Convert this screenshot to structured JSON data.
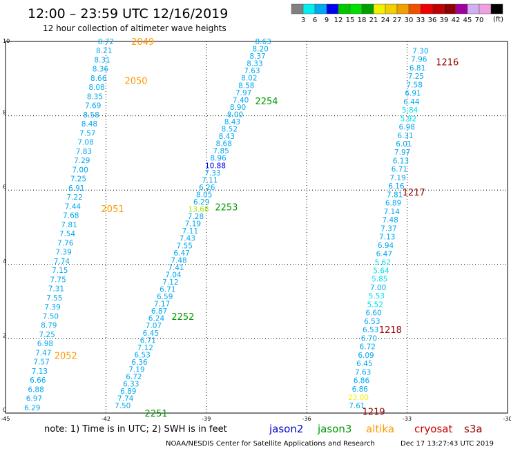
{
  "header": {
    "title": "12:00 – 23:59 UTC 12/16/2019",
    "subtitle": "12 hour collection of altimeter wave heights"
  },
  "legend": {
    "unit": "(ft)",
    "colors": [
      "#808080",
      "#00f0f0",
      "#00a8f0",
      "#0000f0",
      "#00c800",
      "#00e000",
      "#00a000",
      "#f0f000",
      "#f0d000",
      "#f0a000",
      "#f05000",
      "#f00000",
      "#c00000",
      "#900000",
      "#a000a0",
      "#d0b0f0",
      "#f0a0e0",
      "#000000"
    ],
    "labels": [
      "3",
      "6",
      "9",
      "12",
      "15",
      "18",
      "21",
      "24",
      "27",
      "30",
      "33",
      "36",
      "39",
      "42",
      "45",
      "70"
    ]
  },
  "footer": {
    "note": "note:  1) Time is in UTC;  2) SWH is in feet",
    "credit": "NOAA/NESDIS Center for Satellite Applications and Research",
    "timestamp": "Dec 17 13:27:43 UTC 2019",
    "satellites": [
      {
        "name": "jason2",
        "color": "#0000cc"
      },
      {
        "name": "jason3",
        "color": "#009900"
      },
      {
        "name": "altika",
        "color": "#ff9900"
      },
      {
        "name": "cryosat",
        "color": "#cc0000"
      },
      {
        "name": "s3a",
        "color": "#990000"
      }
    ]
  },
  "chart_data": {
    "type": "scatter",
    "title": "12:00 – 23:59 UTC 12/16/2019",
    "xlim": [
      -45,
      -30
    ],
    "ylim": [
      0,
      10
    ],
    "x_ticks": [
      -45,
      -42,
      -39,
      -36,
      -33,
      -30
    ],
    "y_ticks": [
      0,
      2,
      4,
      6,
      8,
      10
    ],
    "grid": true,
    "default_color": "#00a8f0",
    "tracks": [
      {
        "satellite": "altika",
        "color": "#ff9900",
        "x_start": -44.2,
        "y_start": 0.15,
        "x_end": -42.0,
        "y_end": 10.0,
        "points": [
          {
            "v": "6.29"
          },
          {
            "v": "6.97"
          },
          {
            "v": "6.88"
          },
          {
            "v": "6.66"
          },
          {
            "v": "7.13"
          },
          {
            "v": "7.57"
          },
          {
            "v": "7.47"
          },
          {
            "v": "6.98"
          },
          {
            "v": "7.25"
          },
          {
            "v": "8.79"
          },
          {
            "v": "7.50"
          },
          {
            "v": "7.39"
          },
          {
            "v": "7.55"
          },
          {
            "v": "7.31"
          },
          {
            "v": "7.75"
          },
          {
            "v": "7.15"
          },
          {
            "v": "7.74"
          },
          {
            "v": "7.39"
          },
          {
            "v": "7.76"
          },
          {
            "v": "7.54"
          },
          {
            "v": "7.81"
          },
          {
            "v": "7.68"
          },
          {
            "v": "7.44"
          },
          {
            "v": "7.22"
          },
          {
            "v": "6.91"
          },
          {
            "v": "7.25"
          },
          {
            "v": "7.00"
          },
          {
            "v": "7.29"
          },
          {
            "v": "7.83"
          },
          {
            "v": "7.08"
          },
          {
            "v": "7.57"
          },
          {
            "v": "8.48"
          },
          {
            "v": "8.58"
          },
          {
            "v": "7.69"
          },
          {
            "v": "8.35"
          },
          {
            "v": "8.08"
          },
          {
            "v": "8.66"
          },
          {
            "v": "8.36"
          },
          {
            "v": "8.31"
          },
          {
            "v": "8.21"
          },
          {
            "v": "8.72"
          }
        ],
        "labels": [
          {
            "text": "2052",
            "x": -43.2,
            "y": 1.55
          },
          {
            "text": "2051",
            "x": -41.8,
            "y": 5.5
          },
          {
            "text": "2050",
            "x": -41.1,
            "y": 8.95
          },
          {
            "text": "2049",
            "x": -40.9,
            "y": 10.0
          }
        ]
      },
      {
        "satellite": "jason3",
        "color": "#009900",
        "x_start": -41.5,
        "y_start": 0.2,
        "x_end": -37.3,
        "y_end": 10.0,
        "points": [
          {
            "v": "7.50"
          },
          {
            "v": "7.74"
          },
          {
            "v": "6.89"
          },
          {
            "v": "6.33"
          },
          {
            "v": "6.72"
          },
          {
            "v": "7.19"
          },
          {
            "v": "6.36"
          },
          {
            "v": "6.53"
          },
          {
            "v": "7.12"
          },
          {
            "v": "6.71"
          },
          {
            "v": "6.45"
          },
          {
            "v": "7.07"
          },
          {
            "v": "6.24"
          },
          {
            "v": "6.87"
          },
          {
            "v": "7.17"
          },
          {
            "v": "6.59"
          },
          {
            "v": "6.71"
          },
          {
            "v": "7.12"
          },
          {
            "v": "7.04"
          },
          {
            "v": "7.41"
          },
          {
            "v": "7.48"
          },
          {
            "v": "6.47"
          },
          {
            "v": "7.55"
          },
          {
            "v": "7.43"
          },
          {
            "v": "7.11"
          },
          {
            "v": "7.19"
          },
          {
            "v": "7.28"
          },
          {
            "v": "13.68",
            "c": "#a0e000"
          },
          {
            "v": "6.29"
          },
          {
            "v": "8.05"
          },
          {
            "v": "6.26"
          },
          {
            "v": "7.11"
          },
          {
            "v": "7.33"
          },
          {
            "v": "10.88",
            "c": "#0000f0"
          },
          {
            "v": "8.96"
          },
          {
            "v": "7.85"
          },
          {
            "v": "8.68"
          },
          {
            "v": "8.43"
          },
          {
            "v": "8.52"
          },
          {
            "v": "8.43"
          },
          {
            "v": "8.00"
          },
          {
            "v": "8.90"
          },
          {
            "v": "7.40"
          },
          {
            "v": "7.97"
          },
          {
            "v": "8.58"
          },
          {
            "v": "8.02"
          },
          {
            "v": "7.63"
          },
          {
            "v": "8.33"
          },
          {
            "v": "8.37"
          },
          {
            "v": "8.20"
          },
          {
            "v": "8.63"
          }
        ],
        "labels": [
          {
            "text": "2251",
            "x": -40.5,
            "y": 0.0
          },
          {
            "text": "2252",
            "x": -39.7,
            "y": 2.6
          },
          {
            "text": "2253",
            "x": -38.4,
            "y": 5.55
          },
          {
            "text": "2254",
            "x": -37.2,
            "y": 8.4
          }
        ]
      },
      {
        "satellite": "s3a",
        "color": "#990000",
        "x_start": -34.5,
        "y_start": 0.2,
        "x_end": -32.6,
        "y_end": 9.75,
        "points": [
          {
            "v": "7.61"
          },
          {
            "v": "23.00",
            "c": "#f0f000"
          },
          {
            "v": "6.86"
          },
          {
            "v": "6.86"
          },
          {
            "v": "7.63"
          },
          {
            "v": "6.45"
          },
          {
            "v": "6.09"
          },
          {
            "v": "6.72"
          },
          {
            "v": "6.70"
          },
          {
            "v": "6.53"
          },
          {
            "v": "6.53"
          },
          {
            "v": "6.60"
          },
          {
            "v": "5.52",
            "c": "#00e0f0"
          },
          {
            "v": "5.53",
            "c": "#00e0f0"
          },
          {
            "v": "7.00"
          },
          {
            "v": "5.85",
            "c": "#00e0f0"
          },
          {
            "v": "5.64",
            "c": "#00e0f0"
          },
          {
            "v": "5.62",
            "c": "#00e0f0"
          },
          {
            "v": "6.47"
          },
          {
            "v": "6.94"
          },
          {
            "v": "7.13"
          },
          {
            "v": "7.37"
          },
          {
            "v": "7.48"
          },
          {
            "v": "7.14"
          },
          {
            "v": "6.89"
          },
          {
            "v": "7.81"
          },
          {
            "v": "6.16"
          },
          {
            "v": "7.19"
          },
          {
            "v": "6.71"
          },
          {
            "v": "6.13"
          },
          {
            "v": "7.97"
          },
          {
            "v": "6.01"
          },
          {
            "v": "6.31"
          },
          {
            "v": "6.98"
          },
          {
            "v": "5.92",
            "c": "#00e0f0"
          },
          {
            "v": "5.84",
            "c": "#00e0f0"
          },
          {
            "v": "6.44"
          },
          {
            "v": "6.91"
          },
          {
            "v": "7.58"
          },
          {
            "v": "7.25"
          },
          {
            "v": "6.81"
          },
          {
            "v": "7.96"
          },
          {
            "v": "7.30"
          }
        ],
        "labels": [
          {
            "text": "1219",
            "x": -34.0,
            "y": 0.05
          },
          {
            "text": "1218",
            "x": -33.5,
            "y": 2.25
          },
          {
            "text": "1217",
            "x": -32.8,
            "y": 5.95
          },
          {
            "text": "1216",
            "x": -31.8,
            "y": 9.45
          }
        ]
      }
    ]
  }
}
